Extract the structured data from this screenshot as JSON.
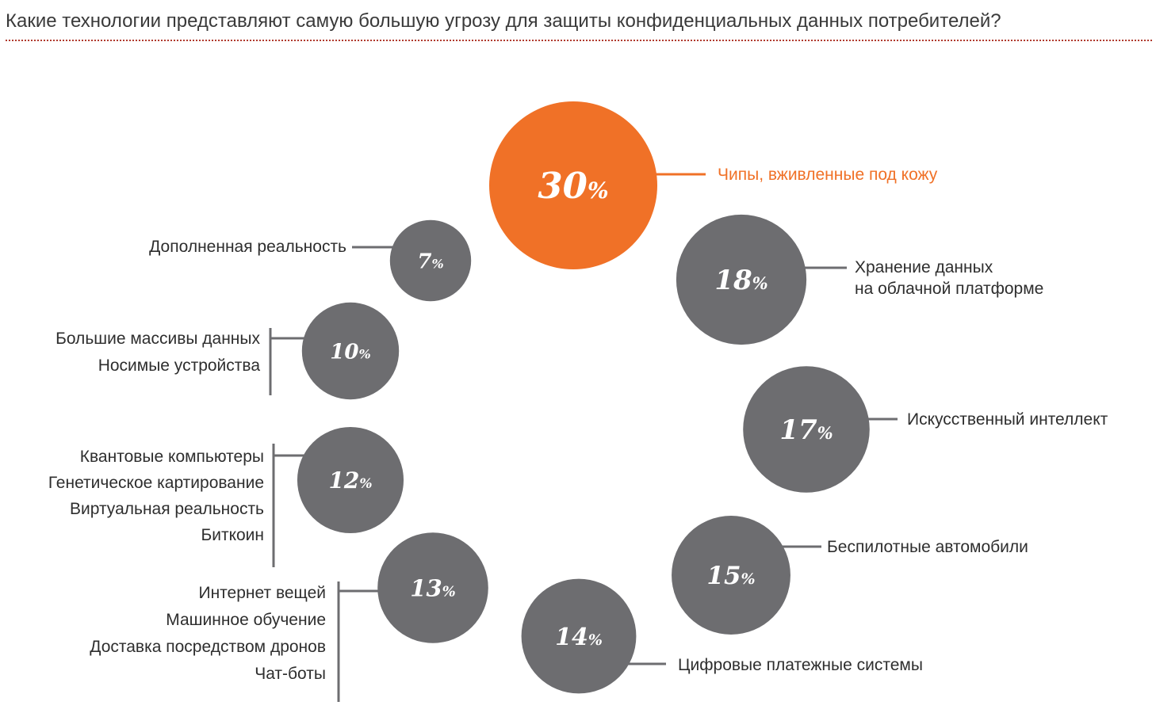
{
  "title": "Какие технологии представляют самую большую угрозу для защиты конфиденциальных данных потребителей?",
  "colors": {
    "highlight": "#f07127",
    "bubble": "#6d6d70",
    "connector": "#6d6d70",
    "text": "#2e2e2e",
    "rule": "#b03a2e"
  },
  "chart_data": {
    "type": "bubble",
    "title": "Какие технологии представляют самую большую угрозу для защиты конфиденциальных данных потребителей?",
    "unit": "%",
    "groups": [
      {
        "value": 30,
        "label": "30",
        "unit": "%",
        "highlight": true,
        "categories": [
          "Чипы, вживленные под кожу"
        ]
      },
      {
        "value": 18,
        "label": "18",
        "unit": "%",
        "highlight": false,
        "categories": [
          "Хранение данных",
          "на облачной платформе"
        ]
      },
      {
        "value": 17,
        "label": "17",
        "unit": "%",
        "highlight": false,
        "categories": [
          "Искусственный интеллект"
        ]
      },
      {
        "value": 15,
        "label": "15",
        "unit": "%",
        "highlight": false,
        "categories": [
          "Беспилотные автомобили"
        ]
      },
      {
        "value": 14,
        "label": "14",
        "unit": "%",
        "highlight": false,
        "categories": [
          "Цифровые платежные системы"
        ]
      },
      {
        "value": 13,
        "label": "13",
        "unit": "%",
        "highlight": false,
        "categories": [
          "Интернет вещей",
          "Машинное обучение",
          "Доставка посредством дронов",
          "Чат-боты"
        ]
      },
      {
        "value": 12,
        "label": "12",
        "unit": "%",
        "highlight": false,
        "categories": [
          "Квантовые компьютеры",
          "Генетическое картирование",
          "Виртуальная реальность",
          "Биткоин"
        ]
      },
      {
        "value": 10,
        "label": "10",
        "unit": "%",
        "highlight": false,
        "categories": [
          "Большие массивы данных",
          "Носимые устройства"
        ]
      },
      {
        "value": 7,
        "label": "7",
        "unit": "%",
        "highlight": false,
        "categories": [
          "Дополненная реальность"
        ]
      }
    ]
  }
}
